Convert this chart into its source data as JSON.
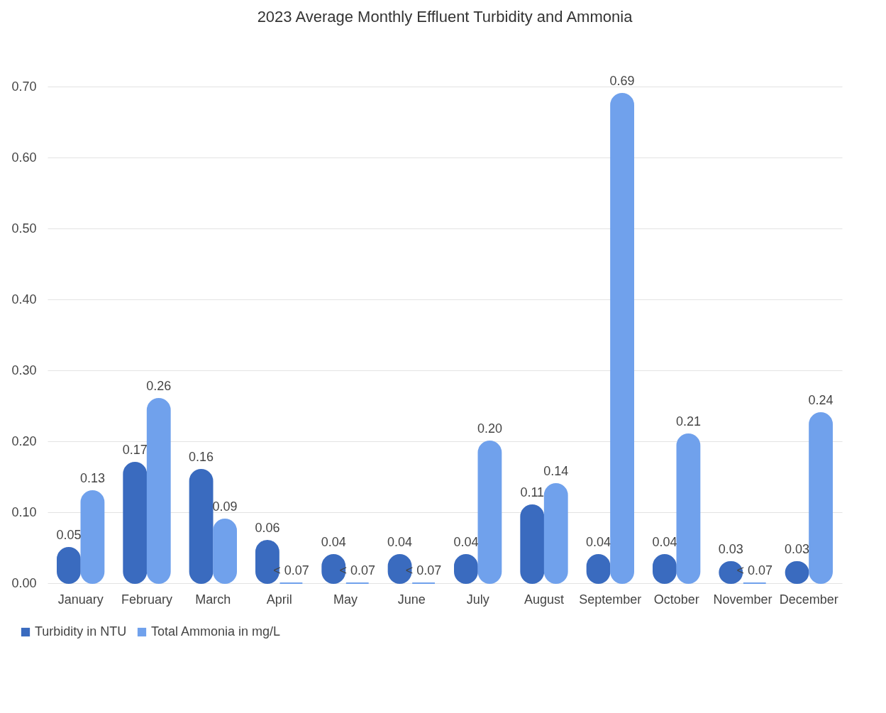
{
  "chart_data": {
    "type": "bar",
    "title": "2023 Average Monthly Effluent Turbidity and Ammonia",
    "categories": [
      "January",
      "February",
      "March",
      "April",
      "May",
      "June",
      "July",
      "August",
      "September",
      "October",
      "November",
      "December"
    ],
    "series": [
      {
        "name": "Turbidity in NTU",
        "color": "#3a6bbf",
        "values": [
          0.05,
          0.17,
          0.16,
          0.06,
          0.04,
          0.04,
          0.04,
          0.11,
          0.04,
          0.04,
          0.03,
          0.03
        ],
        "value_labels": [
          "0.05",
          "0.17",
          "0.16",
          "0.06",
          "0.04",
          "0.04",
          "0.04",
          "0.11",
          "0.04",
          "0.04",
          "0.03",
          "0.03"
        ]
      },
      {
        "name": "Total Ammonia in mg/L",
        "color": "#70a1ec",
        "values": [
          0.13,
          0.26,
          0.09,
          0,
          0,
          0,
          0.2,
          0.14,
          0.69,
          0.21,
          0,
          0.24
        ],
        "value_labels": [
          "0.13",
          "0.26",
          "0.09",
          "< 0.07",
          "< 0.07",
          "< 0.07",
          "0.20",
          "0.14",
          "0.69",
          "0.21",
          "< 0.07",
          "0.24"
        ]
      }
    ],
    "ylim": [
      0,
      0.7
    ],
    "yticks": [
      {
        "value": 0,
        "label": "0.00"
      },
      {
        "value": 0.1,
        "label": "0.10"
      },
      {
        "value": 0.2,
        "label": "0.20"
      },
      {
        "value": 0.3,
        "label": "0.30"
      },
      {
        "value": 0.4,
        "label": "0.40"
      },
      {
        "value": 0.5,
        "label": "0.50"
      },
      {
        "value": 0.6,
        "label": "0.60"
      },
      {
        "value": 0.7,
        "label": "0.70"
      }
    ],
    "grid": "y",
    "legend": "bottom left"
  }
}
